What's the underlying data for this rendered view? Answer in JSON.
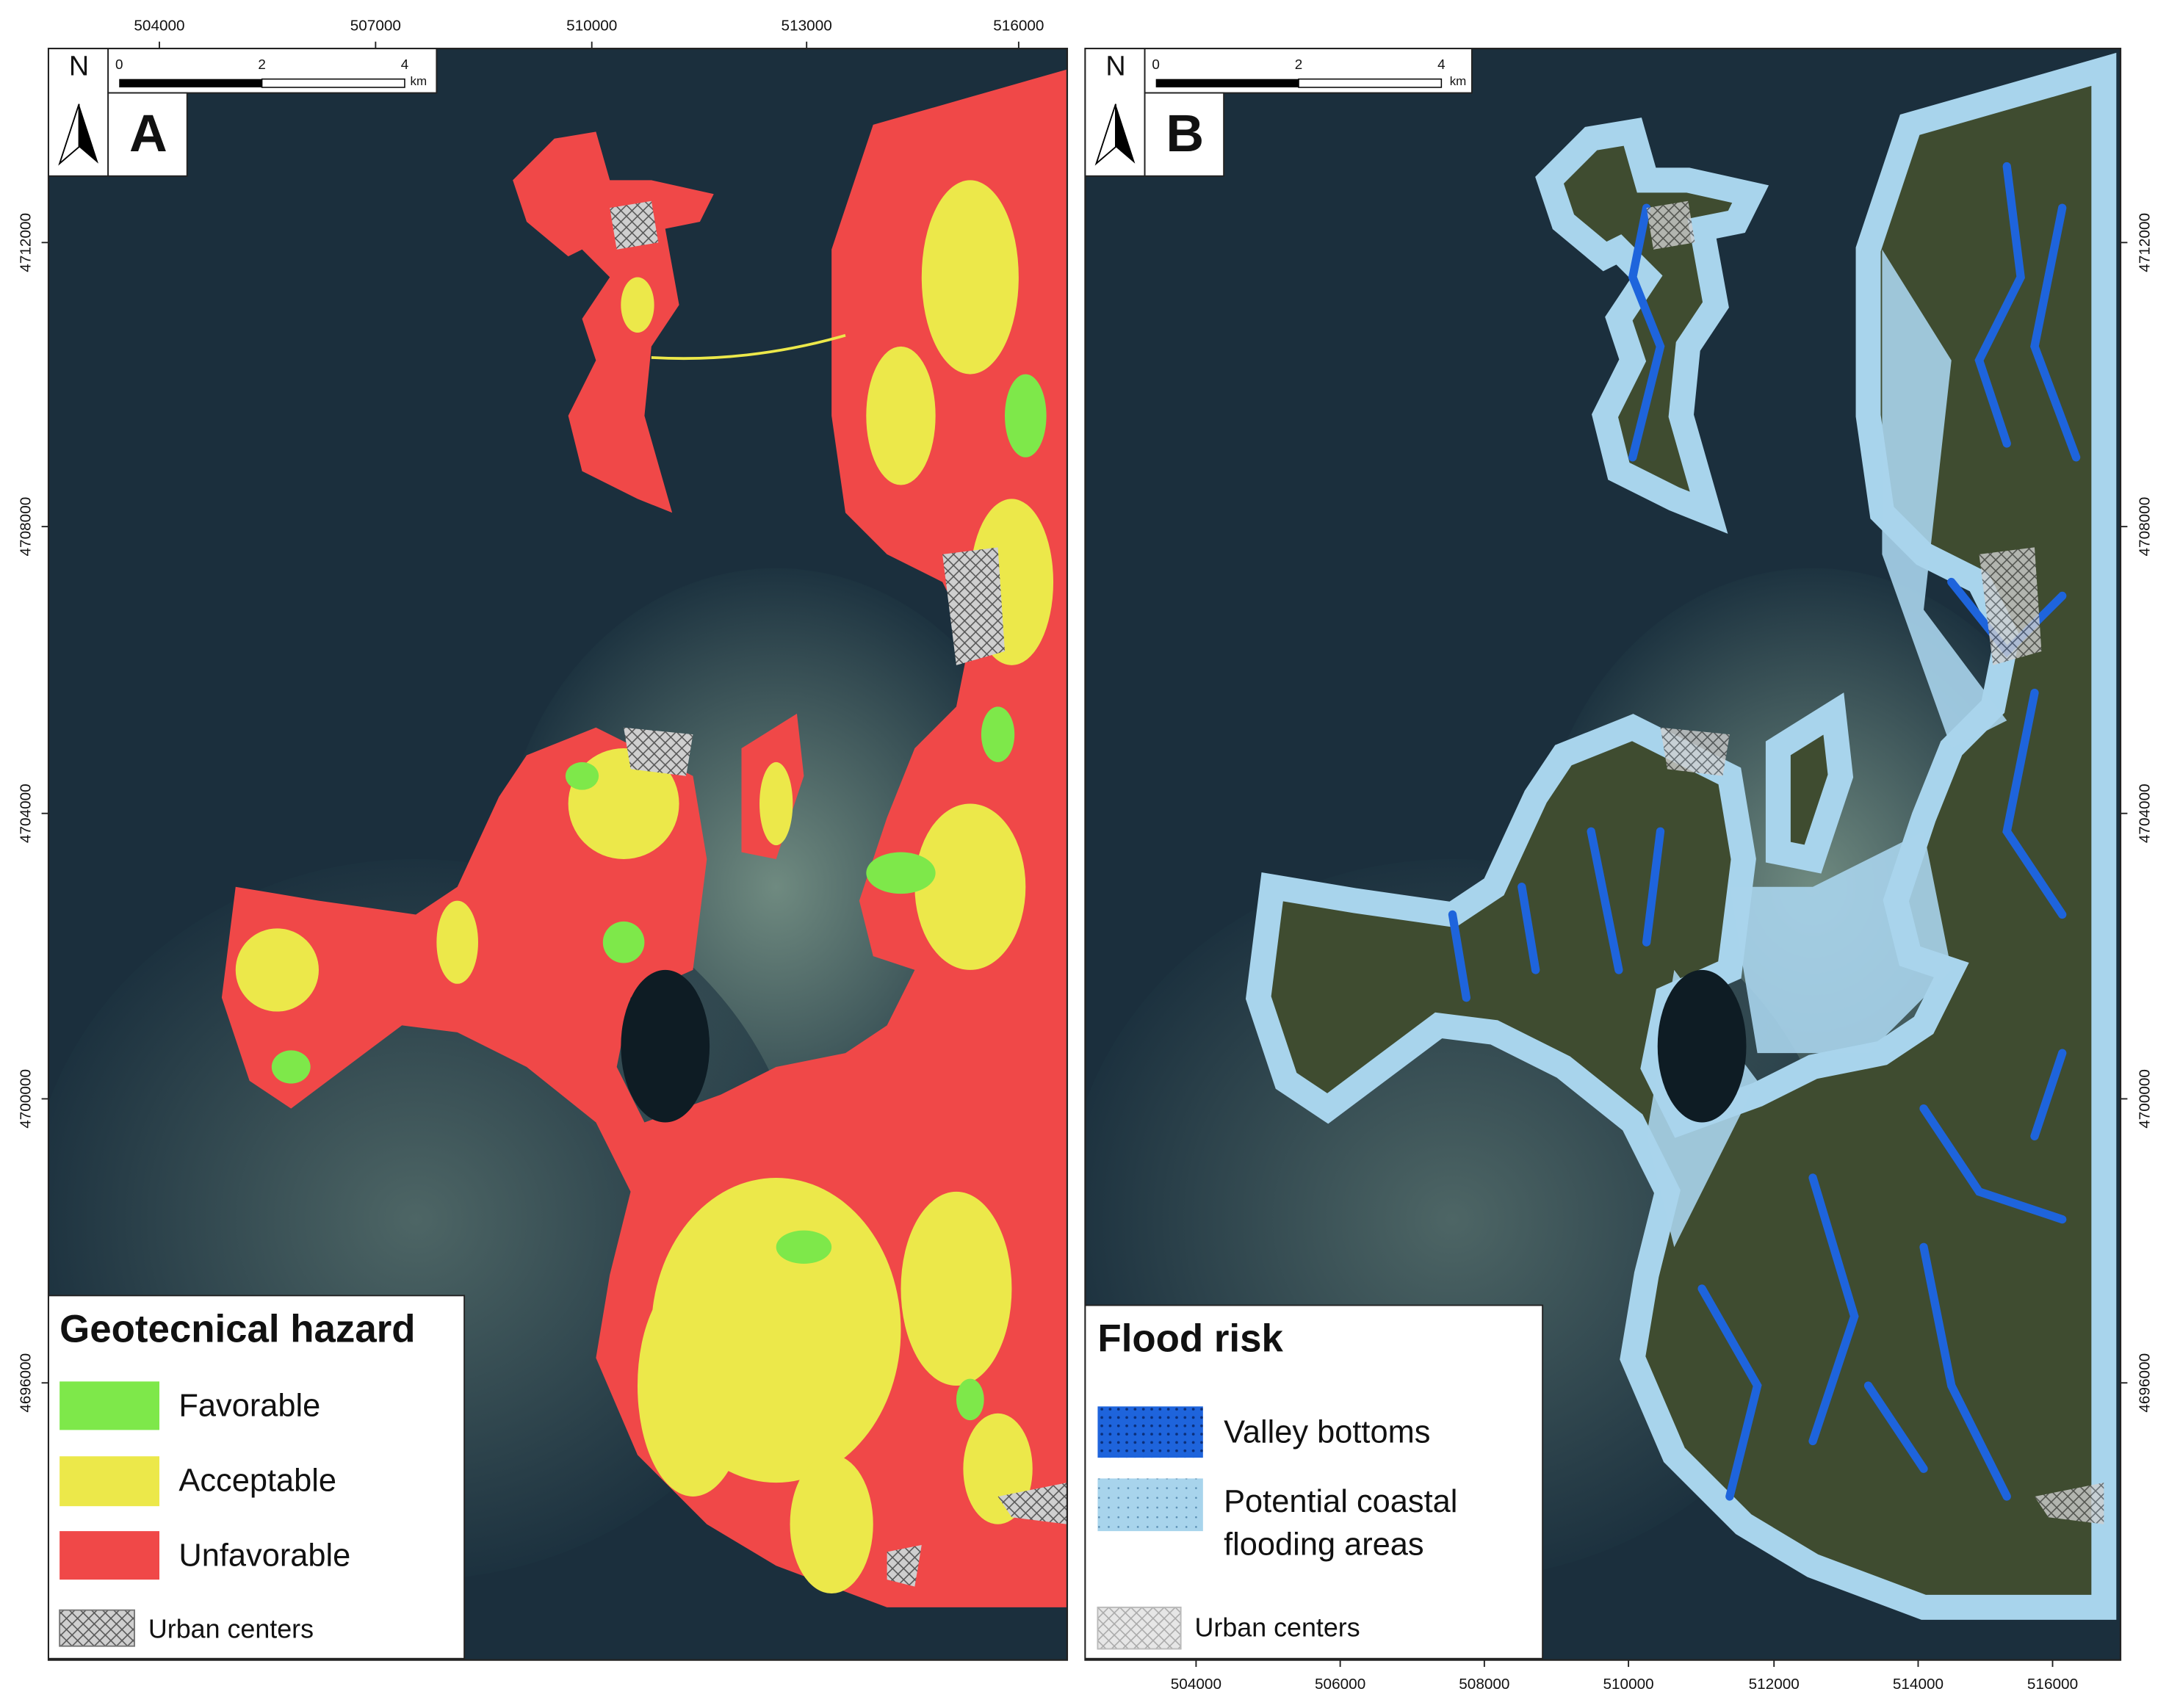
{
  "panels": [
    {
      "label": "A",
      "north": "N",
      "scalebar": {
        "labels": [
          "0",
          "2",
          "4"
        ],
        "unit": "km"
      },
      "x_ticks": [
        "504000",
        "507000",
        "510000",
        "513000",
        "516000"
      ],
      "y_ticks": [
        "4712000",
        "4708000",
        "4704000",
        "4700000",
        "4696000"
      ],
      "legend": {
        "title": "Geotecnical hazard",
        "items": [
          {
            "label": "Favorable",
            "color": "#7ee84a"
          },
          {
            "label": "Acceptable",
            "color": "#ece84a"
          },
          {
            "label": "Unfavorable",
            "color": "#f04848"
          }
        ],
        "urban": "Urban centers"
      }
    },
    {
      "label": "B",
      "north": "N",
      "scalebar": {
        "labels": [
          "0",
          "2",
          "4"
        ],
        "unit": "km"
      },
      "x_ticks": [
        "504000",
        "506000",
        "508000",
        "510000",
        "512000",
        "514000",
        "516000"
      ],
      "y_ticks": [
        "4712000",
        "4708000",
        "4704000",
        "4700000",
        "4696000"
      ],
      "legend": {
        "title": "Flood risk",
        "items": [
          {
            "label": "Valley bottoms",
            "color": "#1e64dc"
          },
          {
            "lines": [
              "Potential coastal",
              "flooding areas"
            ],
            "color": "#a8d4ec"
          }
        ],
        "urban": "Urban centers"
      }
    }
  ]
}
